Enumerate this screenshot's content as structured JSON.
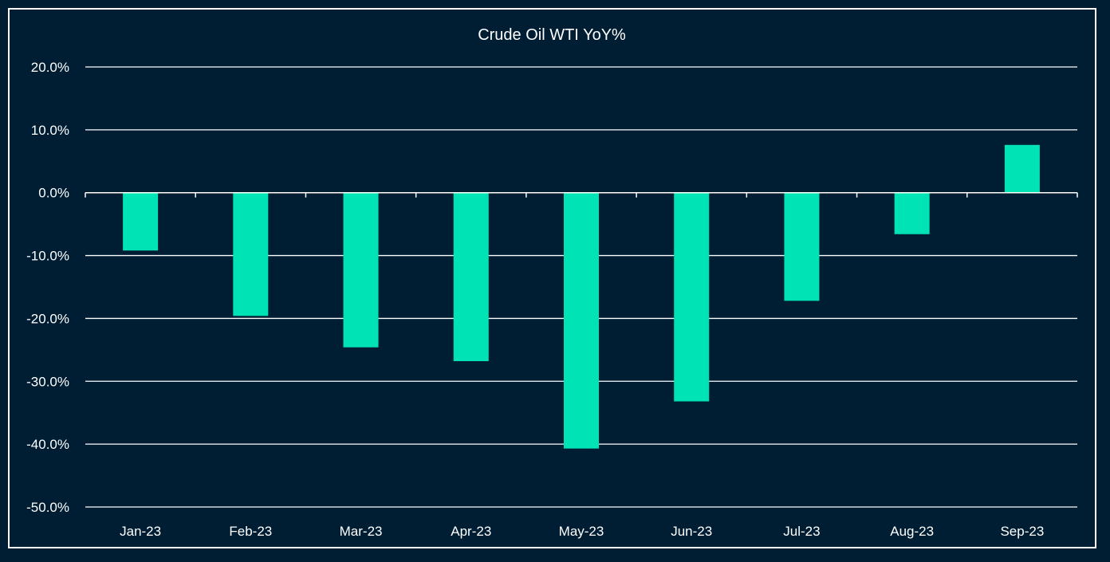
{
  "chart_data": {
    "type": "bar",
    "title": "Crude Oil WTI YoY%",
    "xlabel": "",
    "ylabel": "",
    "categories": [
      "Jan-23",
      "Feb-23",
      "Mar-23",
      "Apr-23",
      "May-23",
      "Jun-23",
      "Jul-23",
      "Aug-23",
      "Sep-23"
    ],
    "values": [
      -9.2,
      -19.6,
      -24.6,
      -26.8,
      -40.7,
      -33.2,
      -17.2,
      -6.6,
      7.6
    ],
    "ylim": [
      -50,
      20
    ],
    "yticks": [
      20,
      10,
      0,
      -10,
      -20,
      -30,
      -40,
      -50
    ],
    "ytick_labels": [
      "20.0%",
      "10.0%",
      "0.0%",
      "-10.0%",
      "-20.0%",
      "-30.0%",
      "-40.0%",
      "-50.0%"
    ],
    "grid": true,
    "legend": "none"
  },
  "colors": {
    "background": "#001e33",
    "bar": "#00e4b5",
    "grid": "#ffffff",
    "text": "#ffffff",
    "border": "#ffffff"
  }
}
